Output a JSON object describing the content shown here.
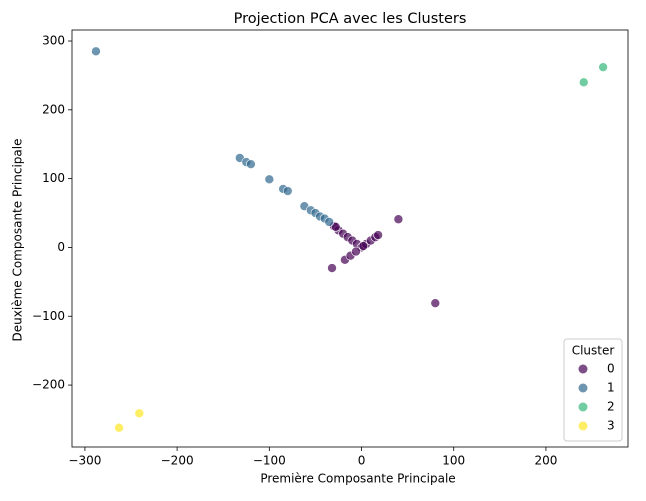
{
  "chart_data": {
    "type": "scatter",
    "title": "Projection PCA avec les Clusters",
    "x_label": "Première Composante Principale",
    "y_label": "Deuxième Composante Principale",
    "legend_title": "Cluster",
    "legend": "lower right",
    "grid": false,
    "xlim": [
      -314,
      289
    ],
    "ylim": [
      -290,
      316
    ],
    "xticks": [
      {
        "value": -300,
        "label": "−300"
      },
      {
        "value": -200,
        "label": "−200"
      },
      {
        "value": -100,
        "label": "−100"
      },
      0,
      100,
      200
    ],
    "yticks": [
      {
        "value": -200,
        "label": "−200"
      },
      {
        "value": -100,
        "label": "−100"
      },
      0,
      100,
      200,
      300
    ],
    "series": [
      {
        "name": "0",
        "color": "#440154",
        "x": [
          40,
          80,
          -32,
          -30,
          -25,
          -20,
          -15,
          -10,
          -5,
          0,
          5,
          10,
          15,
          18,
          -18,
          -12,
          -6,
          2,
          -28
        ],
        "y": [
          41,
          -81,
          -30,
          31,
          25,
          20,
          15,
          10,
          5,
          0,
          5,
          10,
          15,
          18,
          -18,
          -12,
          -6,
          2,
          30
        ]
      },
      {
        "name": "1",
        "color": "#31688e",
        "x": [
          -288,
          -132,
          -125,
          -120,
          -100,
          -85,
          -80,
          -62,
          -55,
          -50,
          -45,
          -40,
          -35
        ],
        "y": [
          285,
          130,
          124,
          121,
          99,
          85,
          82,
          60,
          54,
          50,
          45,
          42,
          37
        ]
      },
      {
        "name": "2",
        "color": "#35b779",
        "x": [
          241,
          262
        ],
        "y": [
          240,
          262
        ]
      },
      {
        "name": "3",
        "color": "#fde725",
        "x": [
          -263,
          -241
        ],
        "y": [
          -262,
          -241
        ]
      }
    ]
  }
}
